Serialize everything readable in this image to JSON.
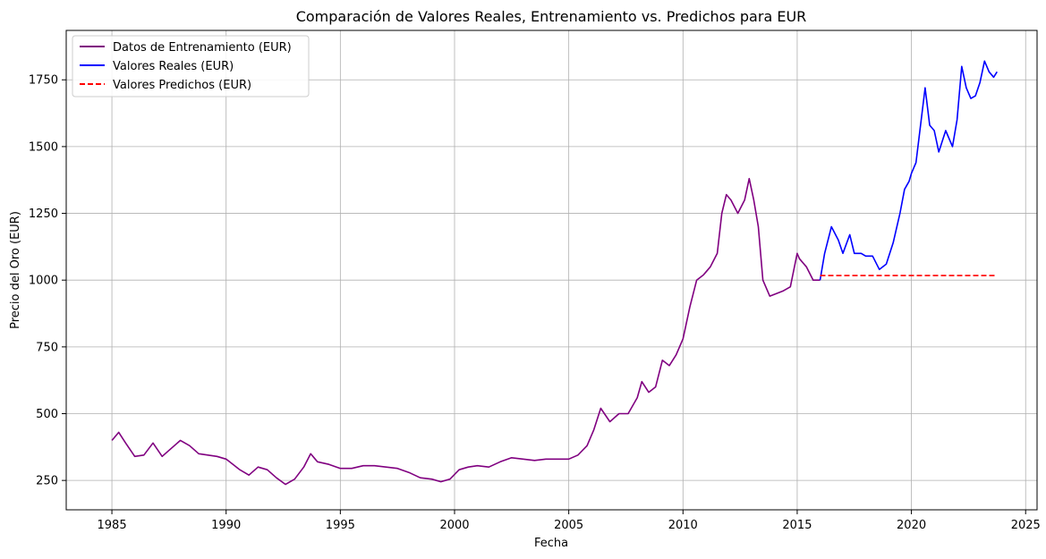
{
  "chart_data": {
    "type": "line",
    "title": "Comparación de Valores Reales, Entrenamiento vs. Predichos para EUR",
    "xlabel": "Fecha",
    "ylabel": "Precio del Oro (EUR)",
    "xlim": [
      1983.0,
      2025.5
    ],
    "ylim": [
      140,
      1935
    ],
    "x_ticks": [
      1985,
      1990,
      1995,
      2000,
      2005,
      2010,
      2015,
      2020,
      2025
    ],
    "y_ticks": [
      250,
      500,
      750,
      1000,
      1250,
      1500,
      1750
    ],
    "grid": true,
    "legend_position": "top-left",
    "series": [
      {
        "name": "Datos de Entrenamiento (EUR)",
        "color": "#800080",
        "style": "solid",
        "x": [
          1985.0,
          1985.3,
          1985.6,
          1986.0,
          1986.4,
          1986.8,
          1987.2,
          1987.6,
          1988.0,
          1988.4,
          1988.8,
          1989.2,
          1989.6,
          1990.0,
          1990.3,
          1990.6,
          1991.0,
          1991.4,
          1991.8,
          1992.2,
          1992.6,
          1993.0,
          1993.4,
          1993.7,
          1994.0,
          1994.5,
          1995.0,
          1995.5,
          1996.0,
          1996.5,
          1997.0,
          1997.5,
          1998.0,
          1998.5,
          1999.0,
          1999.4,
          1999.8,
          2000.2,
          2000.6,
          2001.0,
          2001.5,
          2002.0,
          2002.5,
          2003.0,
          2003.5,
          2004.0,
          2004.5,
          2005.0,
          2005.4,
          2005.8,
          2006.1,
          2006.4,
          2006.8,
          2007.2,
          2007.6,
          2008.0,
          2008.2,
          2008.5,
          2008.8,
          2009.1,
          2009.4,
          2009.7,
          2010.0,
          2010.3,
          2010.6,
          2010.9,
          2011.2,
          2011.5,
          2011.7,
          2011.9,
          2012.1,
          2012.4,
          2012.7,
          2012.9,
          2013.1,
          2013.3,
          2013.5,
          2013.8,
          2014.1,
          2014.4,
          2014.7,
          2015.0,
          2015.1,
          2015.4,
          2015.7,
          2016.0
        ],
        "y": [
          400,
          430,
          390,
          340,
          345,
          390,
          340,
          370,
          400,
          380,
          350,
          345,
          340,
          330,
          310,
          290,
          270,
          300,
          290,
          260,
          235,
          255,
          300,
          350,
          320,
          310,
          295,
          295,
          305,
          305,
          300,
          295,
          280,
          260,
          255,
          245,
          255,
          290,
          300,
          305,
          300,
          320,
          335,
          330,
          325,
          330,
          330,
          330,
          345,
          380,
          440,
          520,
          470,
          500,
          500,
          560,
          620,
          580,
          600,
          700,
          680,
          720,
          780,
          900,
          1000,
          1020,
          1050,
          1100,
          1250,
          1320,
          1300,
          1250,
          1300,
          1380,
          1300,
          1200,
          1000,
          940,
          950,
          960,
          975,
          1100,
          1080,
          1050,
          1000,
          1000
        ]
      },
      {
        "name": "Valores Reales (EUR)",
        "color": "#0000ff",
        "style": "solid",
        "x": [
          2016.0,
          2016.2,
          2016.5,
          2016.8,
          2017.0,
          2017.3,
          2017.5,
          2017.8,
          2018.0,
          2018.3,
          2018.6,
          2018.9,
          2019.2,
          2019.5,
          2019.7,
          2019.9,
          2020.0,
          2020.2,
          2020.4,
          2020.6,
          2020.8,
          2021.0,
          2021.2,
          2021.5,
          2021.8,
          2022.0,
          2022.2,
          2022.4,
          2022.6,
          2022.8,
          2023.0,
          2023.2,
          2023.4,
          2023.6,
          2023.75
        ],
        "y": [
          1000,
          1100,
          1200,
          1150,
          1100,
          1170,
          1100,
          1100,
          1090,
          1090,
          1040,
          1060,
          1140,
          1250,
          1340,
          1370,
          1400,
          1440,
          1580,
          1720,
          1580,
          1560,
          1480,
          1560,
          1500,
          1600,
          1800,
          1720,
          1680,
          1690,
          1740,
          1820,
          1780,
          1760,
          1780
        ]
      },
      {
        "name": "Valores Predichos (EUR)",
        "color": "#ff0000",
        "style": "dashed",
        "x": [
          2016.0,
          2023.75
        ],
        "y": [
          1017,
          1017
        ]
      }
    ]
  }
}
